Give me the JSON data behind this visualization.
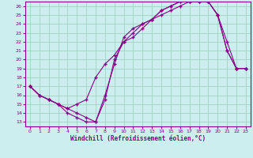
{
  "xlabel": "Windchill (Refroidissement éolien,°C)",
  "background_color": "#cceeee",
  "line_color": "#880088",
  "marker": "+",
  "xlim": [
    -0.5,
    23.5
  ],
  "ylim": [
    12.5,
    26.5
  ],
  "xticks": [
    0,
    1,
    2,
    3,
    4,
    5,
    6,
    7,
    8,
    9,
    10,
    11,
    12,
    13,
    14,
    15,
    16,
    17,
    18,
    19,
    20,
    21,
    22,
    23
  ],
  "yticks": [
    13,
    14,
    15,
    16,
    17,
    18,
    19,
    20,
    21,
    22,
    23,
    24,
    25,
    26
  ],
  "series1_x": [
    0,
    1,
    2,
    3,
    4,
    5,
    6,
    7,
    8,
    9,
    10,
    11,
    12,
    13,
    14,
    15,
    16,
    17,
    18,
    19,
    20,
    21,
    22,
    23
  ],
  "series1_y": [
    17.0,
    16.0,
    15.5,
    15.0,
    14.5,
    15.0,
    15.5,
    18.0,
    19.5,
    20.5,
    22.0,
    23.0,
    24.0,
    24.5,
    25.0,
    25.5,
    26.0,
    26.5,
    26.5,
    26.5,
    25.0,
    22.0,
    19.0,
    19.0
  ],
  "series2_x": [
    0,
    1,
    2,
    3,
    4,
    5,
    6,
    7,
    8,
    9,
    10,
    11,
    12,
    13,
    14,
    15,
    16,
    17,
    18,
    19,
    20,
    21,
    22,
    23
  ],
  "series2_y": [
    17.0,
    16.0,
    15.5,
    15.0,
    14.5,
    14.0,
    13.5,
    13.0,
    15.5,
    20.0,
    22.0,
    22.5,
    23.5,
    24.5,
    25.5,
    26.0,
    26.5,
    26.5,
    26.5,
    26.5,
    25.0,
    21.0,
    19.0,
    19.0
  ],
  "series3_x": [
    0,
    1,
    2,
    3,
    4,
    5,
    6,
    7,
    8,
    9,
    10,
    11,
    12,
    13,
    14,
    15,
    16,
    17,
    18,
    19,
    20,
    21,
    22,
    23
  ],
  "series3_y": [
    17.0,
    16.0,
    15.5,
    15.0,
    14.0,
    13.5,
    13.0,
    13.0,
    16.0,
    19.5,
    22.5,
    23.5,
    24.0,
    24.5,
    25.5,
    26.0,
    26.5,
    26.5,
    26.5,
    26.5,
    25.0,
    21.0,
    19.0,
    19.0
  ]
}
